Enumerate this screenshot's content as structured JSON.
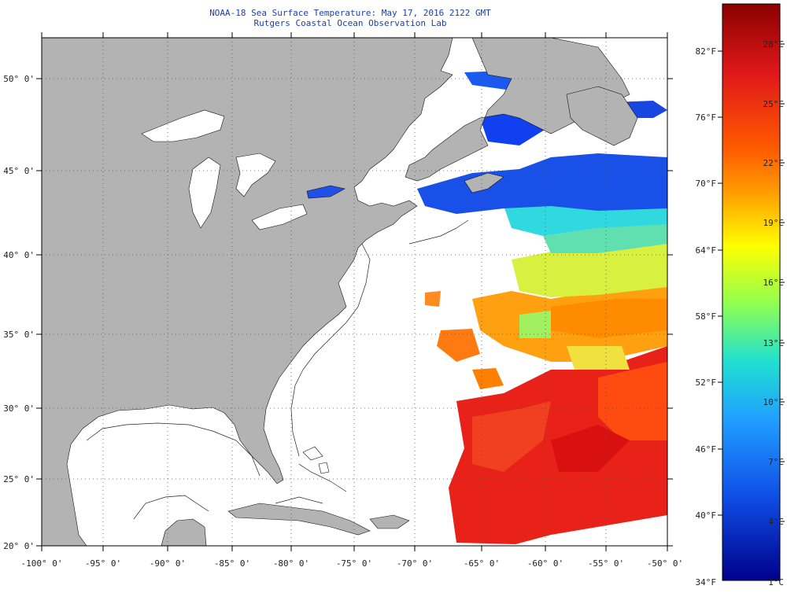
{
  "title": {
    "line1": "NOAA-18 Sea Surface Temperature:  May 17, 2016 2122 GMT",
    "line2": "Rutgers Coastal Ocean Observation Lab"
  },
  "map": {
    "lat_ticks": [
      "20° 0'",
      "25° 0'",
      "30° 0'",
      "35° 0'",
      "40° 0'",
      "45° 0'",
      "50° 0'"
    ],
    "lon_ticks": [
      "-100° 0'",
      "-95° 0'",
      "-90° 0'",
      "-85° 0'",
      "-80° 0'",
      "-75° 0'",
      "-70° 0'",
      "-65° 0'",
      "-60° 0'",
      "-55° 0'",
      "-50° 0'"
    ],
    "land_color": "#b3b3b3",
    "ocean_color": "#ffffff"
  },
  "colorbar": {
    "fahrenheit_labels": [
      "82°F",
      "76°F",
      "70°F",
      "64°F",
      "58°F",
      "52°F",
      "46°F",
      "40°F",
      "34°F"
    ],
    "celsius_labels": [
      "28°C",
      "25°C",
      "22°C",
      "19°C",
      "16°C",
      "13°C",
      "10°C",
      "7°C",
      "4°C",
      "1°C"
    ],
    "colors": [
      "#8b0000",
      "#e0181a",
      "#ff6a00",
      "#ffb000",
      "#ffff00",
      "#a0ff40",
      "#20e0d0",
      "#20a0ff",
      "#1040e0",
      "#0000a0"
    ]
  }
}
